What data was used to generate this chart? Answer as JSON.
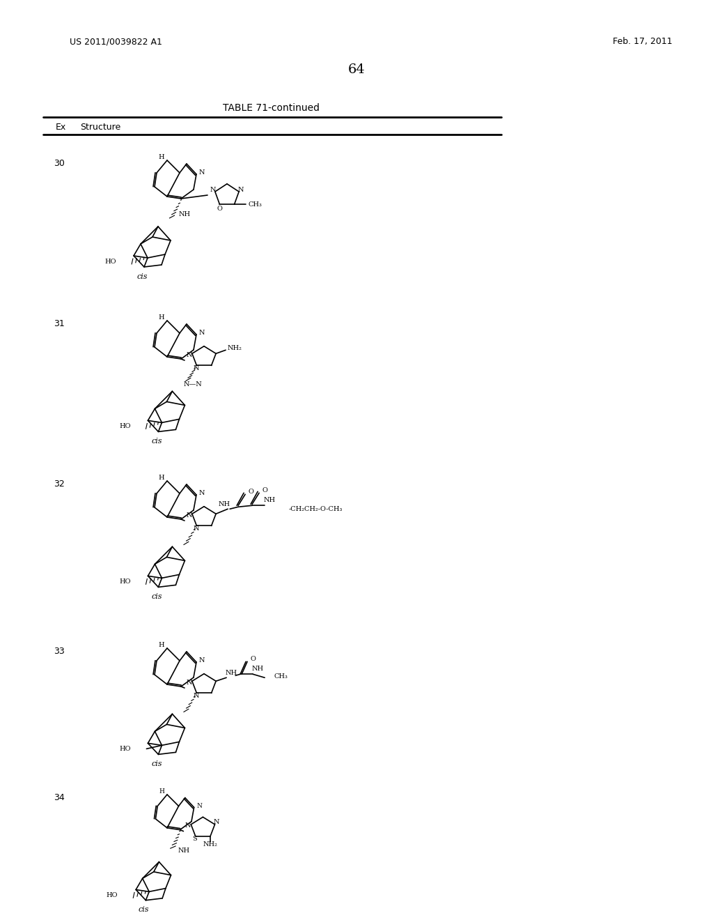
{
  "page_number": "64",
  "patent_number": "US 2011/0039822 A1",
  "patent_date": "Feb. 17, 2011",
  "table_title": "TABLE 71-continued",
  "col_headers": [
    "Ex",
    "Structure"
  ],
  "background_color": "#ffffff",
  "text_color": "#000000",
  "entries": [
    {
      "ex": "30",
      "label": "cis"
    },
    {
      "ex": "31",
      "label": "cis"
    },
    {
      "ex": "32",
      "label": "cis"
    },
    {
      "ex": "33",
      "label": "cis"
    },
    {
      "ex": "34",
      "label": "cis"
    }
  ]
}
